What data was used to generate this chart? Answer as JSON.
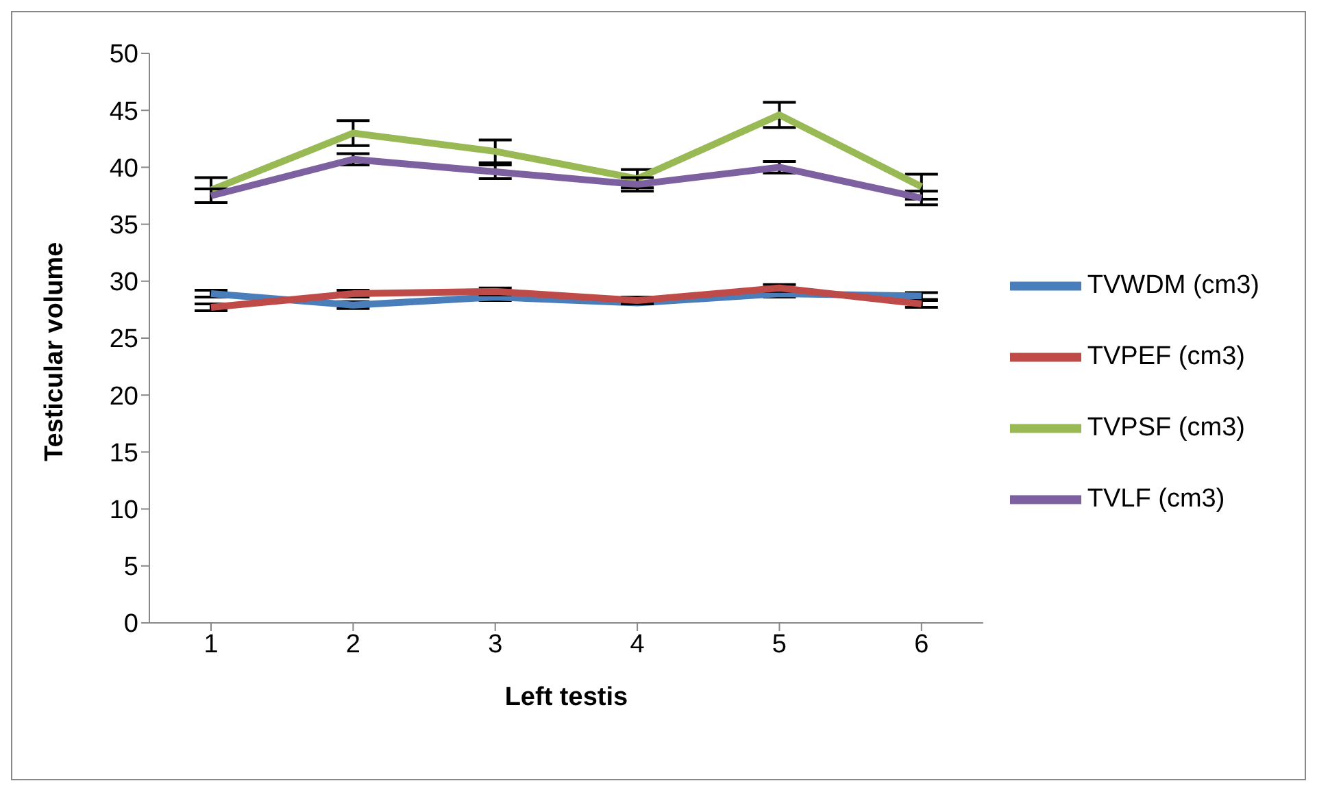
{
  "chart_data": {
    "type": "line",
    "xlabel": "Left testis",
    "ylabel": "Testicular volume",
    "categories": [
      "1",
      "2",
      "3",
      "4",
      "5",
      "6"
    ],
    "series": [
      {
        "name": "TVWDM (cm3)",
        "color": "#4a7ebb",
        "values": [
          28.9,
          27.9,
          28.6,
          28.1,
          28.9,
          28.7
        ],
        "errors": [
          0.3,
          0.3,
          0.3,
          null,
          0.3,
          0.3
        ]
      },
      {
        "name": "TVPEF (cm3)",
        "color": "#be4b48",
        "values": [
          27.7,
          28.9,
          29.1,
          28.3,
          29.4,
          28.0
        ],
        "errors": [
          0.3,
          0.3,
          0.3,
          0.3,
          0.3,
          0.3
        ]
      },
      {
        "name": "TVPSF (cm3)",
        "color": "#98b954",
        "values": [
          38.0,
          43.0,
          41.4,
          39.0,
          44.6,
          38.3
        ],
        "errors": [
          1.1,
          1.1,
          1.0,
          0.8,
          1.1,
          1.1
        ]
      },
      {
        "name": "TVLF  (cm3)",
        "color": "#7d60a0",
        "values": [
          37.5,
          40.7,
          39.6,
          38.5,
          40.0,
          37.3
        ],
        "errors": [
          0.6,
          0.5,
          0.6,
          0.6,
          0.5,
          0.6
        ]
      }
    ],
    "ylim": [
      0,
      50
    ],
    "yticks": [
      0,
      5,
      10,
      15,
      20,
      25,
      30,
      35,
      40,
      45,
      50
    ],
    "grid": false,
    "legend": "right",
    "marker": "none",
    "line_style": "solid"
  }
}
